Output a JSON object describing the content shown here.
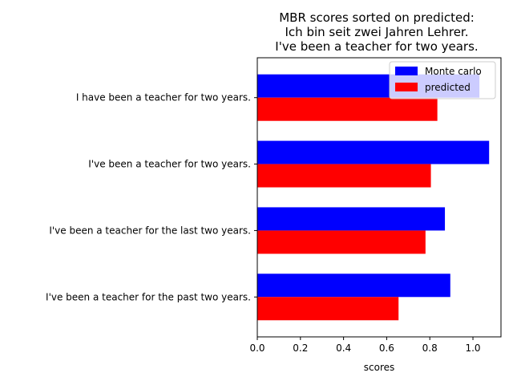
{
  "chart_data": {
    "type": "bar",
    "orientation": "horizontal",
    "title_lines": [
      "MBR scores sorted on predicted:",
      "Ich bin seit zwei Jahren Lehrer.",
      "I've been a teacher for two years."
    ],
    "xlabel": "scores",
    "ylabel": "",
    "xlim": [
      0.0,
      1.13
    ],
    "xticks": [
      "0.0",
      "0.2",
      "0.4",
      "0.6",
      "0.8",
      "1.0"
    ],
    "categories": [
      "I have been a teacher for two years.",
      "I've been a teacher for two years.",
      "I've been a teacher for the last two years.",
      "I've been a teacher for the past two years."
    ],
    "series": [
      {
        "name": "Monte carlo",
        "color": "#0000ff",
        "values": [
          1.03,
          1.075,
          0.87,
          0.895
        ]
      },
      {
        "name": "predicted",
        "color": "#ff0000",
        "values": [
          0.835,
          0.805,
          0.78,
          0.655
        ]
      }
    ],
    "legend_position": "top-right",
    "grid": false
  }
}
